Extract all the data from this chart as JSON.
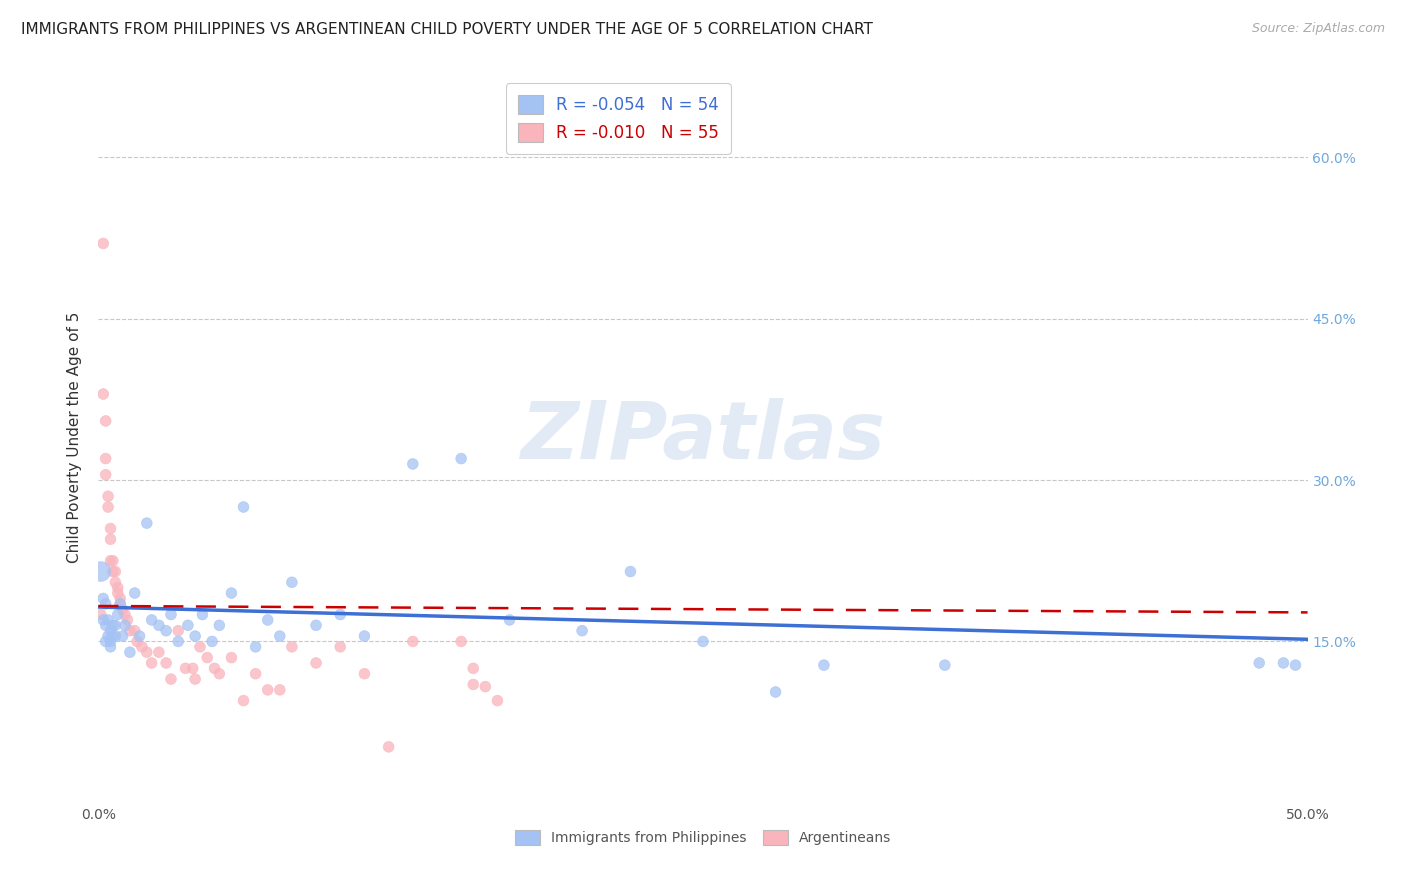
{
  "title": "IMMIGRANTS FROM PHILIPPINES VS ARGENTINEAN CHILD POVERTY UNDER THE AGE OF 5 CORRELATION CHART",
  "source": "Source: ZipAtlas.com",
  "ylabel": "Child Poverty Under the Age of 5",
  "xlim": [
    0.0,
    0.5
  ],
  "ylim": [
    0.0,
    0.68
  ],
  "yticks": [
    0.15,
    0.3,
    0.45,
    0.6
  ],
  "yticklabels": [
    "15.0%",
    "30.0%",
    "45.0%",
    "60.0%"
  ],
  "xticks": [
    0.0,
    0.1,
    0.2,
    0.3,
    0.4,
    0.5
  ],
  "xticklabels": [
    "0.0%",
    "",
    "",
    "",
    "",
    "50.0%"
  ],
  "title_fontsize": 11,
  "axis_label_fontsize": 11,
  "tick_fontsize": 10,
  "background_color": "#ffffff",
  "grid_color": "#c8c8c8",
  "watermark": "ZIPatlas",
  "legend_r1": "R = -0.054",
  "legend_n1": "N = 54",
  "legend_r2": "R = -0.010",
  "legend_n2": "N = 55",
  "blue_color": "#a4c2f4",
  "pink_color": "#f4b8c1",
  "blue_fill": "#a4c2f4",
  "pink_fill": "#f9b4bc",
  "blue_line_color": "#3d6fd4",
  "pink_line_color": "#cc0000",
  "right_axis_color": "#6fa8dc",
  "philippines_x": [
    0.001,
    0.002,
    0.002,
    0.003,
    0.003,
    0.003,
    0.004,
    0.004,
    0.005,
    0.005,
    0.005,
    0.006,
    0.006,
    0.007,
    0.007,
    0.008,
    0.009,
    0.01,
    0.011,
    0.013,
    0.015,
    0.017,
    0.02,
    0.022,
    0.025,
    0.028,
    0.03,
    0.033,
    0.037,
    0.04,
    0.043,
    0.047,
    0.05,
    0.055,
    0.06,
    0.065,
    0.07,
    0.075,
    0.08,
    0.09,
    0.1,
    0.11,
    0.13,
    0.15,
    0.17,
    0.2,
    0.22,
    0.25,
    0.28,
    0.3,
    0.35,
    0.48,
    0.49,
    0.495
  ],
  "philippines_y": [
    0.215,
    0.19,
    0.17,
    0.185,
    0.165,
    0.15,
    0.17,
    0.155,
    0.16,
    0.15,
    0.145,
    0.165,
    0.155,
    0.165,
    0.155,
    0.175,
    0.185,
    0.155,
    0.165,
    0.14,
    0.195,
    0.155,
    0.26,
    0.17,
    0.165,
    0.16,
    0.175,
    0.15,
    0.165,
    0.155,
    0.175,
    0.15,
    0.165,
    0.195,
    0.275,
    0.145,
    0.17,
    0.155,
    0.205,
    0.165,
    0.175,
    0.155,
    0.315,
    0.32,
    0.17,
    0.16,
    0.215,
    0.15,
    0.103,
    0.128,
    0.128,
    0.13,
    0.13,
    0.128
  ],
  "philippines_sizes": [
    200,
    60,
    60,
    60,
    60,
    60,
    60,
    60,
    60,
    60,
    60,
    60,
    60,
    60,
    60,
    60,
    60,
    60,
    60,
    60,
    60,
    60,
    60,
    60,
    60,
    60,
    60,
    60,
    60,
    60,
    60,
    60,
    60,
    60,
    60,
    60,
    60,
    60,
    60,
    60,
    60,
    60,
    60,
    60,
    60,
    60,
    60,
    60,
    60,
    60,
    60,
    60,
    60,
    60
  ],
  "argentina_x": [
    0.001,
    0.002,
    0.002,
    0.003,
    0.003,
    0.003,
    0.004,
    0.004,
    0.005,
    0.005,
    0.005,
    0.006,
    0.006,
    0.007,
    0.007,
    0.008,
    0.008,
    0.009,
    0.009,
    0.01,
    0.011,
    0.012,
    0.013,
    0.015,
    0.016,
    0.018,
    0.02,
    0.022,
    0.025,
    0.028,
    0.03,
    0.033,
    0.036,
    0.039,
    0.04,
    0.042,
    0.045,
    0.048,
    0.05,
    0.055,
    0.06,
    0.065,
    0.07,
    0.075,
    0.08,
    0.09,
    0.1,
    0.11,
    0.12,
    0.13,
    0.15,
    0.155,
    0.155,
    0.16,
    0.165
  ],
  "argentina_y": [
    0.175,
    0.52,
    0.38,
    0.355,
    0.32,
    0.305,
    0.285,
    0.275,
    0.255,
    0.245,
    0.225,
    0.225,
    0.215,
    0.215,
    0.205,
    0.2,
    0.195,
    0.19,
    0.185,
    0.18,
    0.175,
    0.17,
    0.16,
    0.16,
    0.15,
    0.145,
    0.14,
    0.13,
    0.14,
    0.13,
    0.115,
    0.16,
    0.125,
    0.125,
    0.115,
    0.145,
    0.135,
    0.125,
    0.12,
    0.135,
    0.095,
    0.12,
    0.105,
    0.105,
    0.145,
    0.13,
    0.145,
    0.12,
    0.052,
    0.15,
    0.15,
    0.125,
    0.11,
    0.108,
    0.095
  ],
  "argentina_sizes": [
    60,
    60,
    60,
    60,
    60,
    60,
    60,
    60,
    60,
    60,
    60,
    60,
    60,
    60,
    60,
    60,
    60,
    60,
    60,
    60,
    60,
    60,
    60,
    60,
    60,
    60,
    60,
    60,
    60,
    60,
    60,
    60,
    60,
    60,
    60,
    60,
    60,
    60,
    60,
    60,
    60,
    60,
    60,
    60,
    60,
    60,
    60,
    60,
    60,
    60,
    60,
    60,
    60,
    60,
    60
  ],
  "philippines_trend_x": [
    0.0,
    0.5
  ],
  "philippines_trend_y": [
    0.182,
    0.152
  ],
  "argentina_trend_x": [
    0.0,
    0.5
  ],
  "argentina_trend_y": [
    0.183,
    0.177
  ]
}
